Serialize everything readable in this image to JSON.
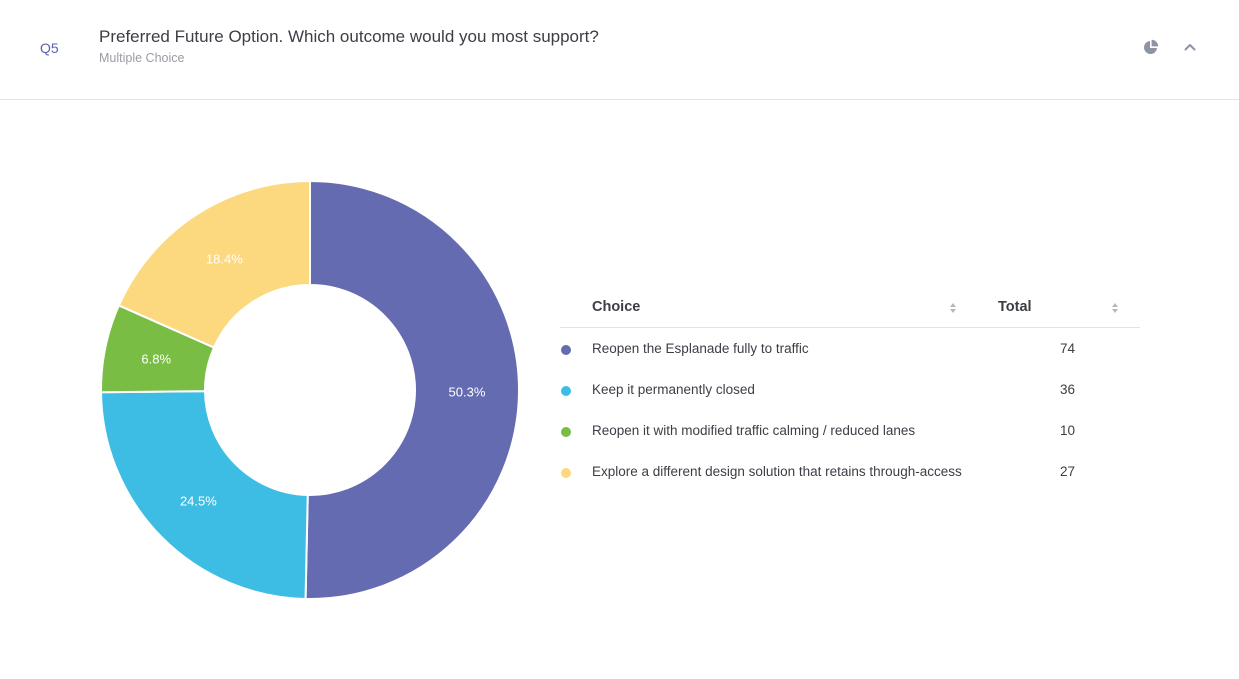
{
  "question": {
    "number": "Q5",
    "title": "Preferred Future Option. Which outcome would you most support?",
    "type": "Multiple Choice"
  },
  "header_icons": {
    "chart_toggle": "pie-chart-icon",
    "collapse": "chevron-up-icon"
  },
  "table": {
    "columns": [
      "Choice",
      "Total"
    ],
    "rows": [
      {
        "choice": "Reopen the Esplanade fully to traffic",
        "total": "74",
        "color": "#656bb0"
      },
      {
        "choice": "Keep it permanently closed",
        "total": "36",
        "color": "#3ebde4"
      },
      {
        "choice": "Reopen it with modified traffic calming / reduced lanes",
        "total": "10",
        "color": "#7abd45"
      },
      {
        "choice": "Explore a different design solution that retains through-access",
        "total": "27",
        "color": "#fcd97f"
      }
    ]
  },
  "chart_data": {
    "type": "pie",
    "variant": "donut",
    "title": "Preferred Future Option. Which outcome would you most support?",
    "categories": [
      "Reopen the Esplanade fully to traffic",
      "Keep it permanently closed",
      "Reopen it with modified traffic calming / reduced lanes",
      "Explore a different design solution that retains through-access"
    ],
    "values": [
      74,
      36,
      10,
      27
    ],
    "percent_labels": [
      "50.3%",
      "24.5%",
      "6.8%",
      "18.4%"
    ],
    "colors": [
      "#656bb0",
      "#3ebde4",
      "#7abd45",
      "#fcd97f"
    ],
    "start_angle_deg": 0,
    "direction": "clockwise",
    "legend_position": "right (table)"
  }
}
